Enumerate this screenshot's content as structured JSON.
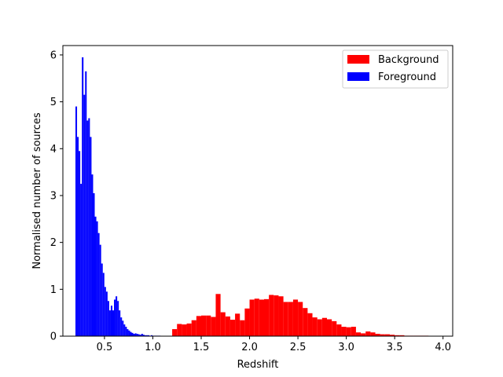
{
  "chart_data": {
    "type": "bar",
    "title": "",
    "xlabel": "Redshift",
    "ylabel": "Normalised number of sources",
    "xlim": [
      0.07,
      4.1
    ],
    "ylim": [
      0,
      6.2
    ],
    "xticks": [
      0.5,
      1.0,
      1.5,
      2.0,
      2.5,
      3.0,
      3.5,
      4.0
    ],
    "yticks": [
      0,
      1,
      2,
      3,
      4,
      5,
      6
    ],
    "grid": false,
    "legend_position": "top-right",
    "series": [
      {
        "name": "Background",
        "color": "#ff0000",
        "bin_start": 1.2,
        "bin_width": 0.05,
        "values": [
          0.15,
          0.26,
          0.25,
          0.27,
          0.34,
          0.43,
          0.44,
          0.44,
          0.41,
          0.9,
          0.51,
          0.42,
          0.35,
          0.48,
          0.34,
          0.59,
          0.78,
          0.8,
          0.78,
          0.79,
          0.88,
          0.87,
          0.85,
          0.73,
          0.73,
          0.78,
          0.73,
          0.6,
          0.49,
          0.4,
          0.36,
          0.39,
          0.36,
          0.32,
          0.25,
          0.2,
          0.19,
          0.2,
          0.08,
          0.06,
          0.1,
          0.08,
          0.05,
          0.04,
          0.04,
          0.03,
          0.02,
          0.02,
          0.01,
          0.01,
          0.01,
          0.01,
          0.01,
          0.005,
          0.005
        ]
      },
      {
        "name": "Foreground",
        "color": "#0000ff",
        "bin_start": 0.2,
        "bin_width": 0.0166,
        "values": [
          4.9,
          4.25,
          3.95,
          3.25,
          5.95,
          5.15,
          5.65,
          4.6,
          4.65,
          4.25,
          3.45,
          3.05,
          2.55,
          2.45,
          2.2,
          1.95,
          1.55,
          1.35,
          1.05,
          0.95,
          0.75,
          0.55,
          0.65,
          0.55,
          0.78,
          0.85,
          0.75,
          0.55,
          0.4,
          0.33,
          0.25,
          0.2,
          0.15,
          0.12,
          0.09,
          0.07,
          0.05,
          0.06,
          0.05,
          0.04,
          0.03,
          0.05,
          0.03,
          0.02,
          0.02,
          0.02,
          0.01,
          0.02,
          0.01,
          0.01,
          0.01,
          0.01,
          0.01
        ]
      }
    ]
  }
}
